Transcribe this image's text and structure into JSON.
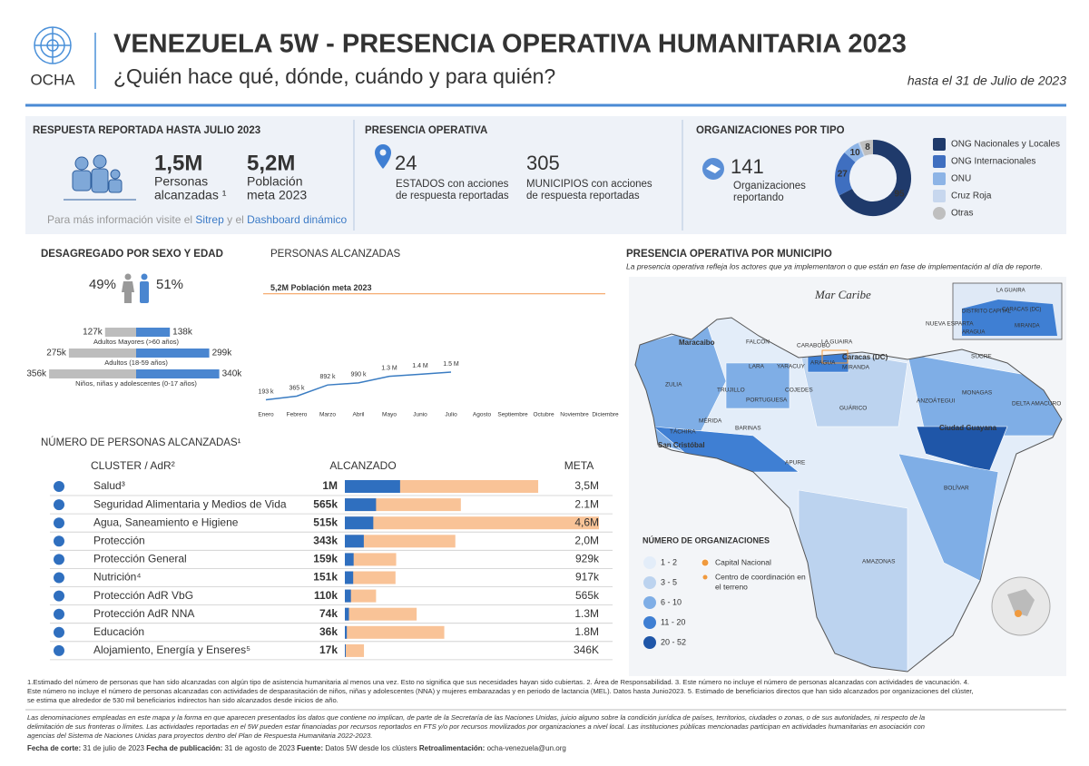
{
  "header": {
    "logo_text": "OCHA",
    "title": "VENEZUELA 5W - PRESENCIA OPERATIVA HUMANITARIA 2023",
    "subtitle": "¿Quién hace qué, dónde, cuándo y para quién?",
    "date": "hasta el 31 de Julio de 2023"
  },
  "response": {
    "title": "RESPUESTA REPORTADA HASTA JULIO 2023",
    "reached": "1,5M",
    "reached_label": [
      "Personas",
      "alcanzadas ¹"
    ],
    "target": "5,2M",
    "target_label": [
      "Población",
      "meta 2023"
    ],
    "info": "Para más información  visite el",
    "link1": "Sitrep",
    "joiner": "y el",
    "link2": "Dashboard dinámico"
  },
  "presence": {
    "title": "PRESENCIA OPERATIVA",
    "states": "24",
    "states_label": [
      "ESTADOS con acciones",
      "de respuesta reportadas"
    ],
    "municipalities": "305",
    "municipalities_label": [
      "MUNICIPIOS con acciones",
      "de respuesta reportadas"
    ]
  },
  "organizations": {
    "title": "ORGANIZACIONES POR TIPO",
    "total": "141",
    "total_label": [
      "Organizaciones",
      "reportando"
    ]
  },
  "chart_data": [
    {
      "type": "pie",
      "donut": true,
      "categories": [
        "ONG Nacionales y Locales",
        "ONG Internacionales",
        "ONU",
        "Cruz Roja",
        "Otras"
      ],
      "values": [
        95,
        27,
        10,
        1,
        8
      ],
      "colors": [
        "#1f3a6b",
        "#3f6fc0",
        "#8db4e6",
        "#c7d7ee",
        "#bfbfbf"
      ]
    },
    {
      "type": "pyramid",
      "title": "DESAGREGADO POR SEXO Y EDAD",
      "groups": [
        "Adultos Mayores (>60 años)",
        "Adultos (18-59 años)",
        "Niños, niñas y adolescentes  (0-17 años)"
      ],
      "series": [
        {
          "share": 49,
          "share_label": "49%",
          "color": "#bdbdbd",
          "values": [
            127000,
            275000,
            356000
          ],
          "value_labels": [
            "127k",
            "275k",
            "356k"
          ]
        },
        {
          "share": 51,
          "share_label": "51%",
          "color": "#4a86d0",
          "values": [
            138000,
            299000,
            340000
          ],
          "value_labels": [
            "138k",
            "299k",
            "340k"
          ]
        }
      ],
      "xlim": [
        0,
        360000
      ]
    },
    {
      "type": "line",
      "title": "PERSONAS ALCANZADAS",
      "categories": [
        "Enero",
        "Febrero",
        "Marzo",
        "Abril",
        "Mayo",
        "Junio",
        "Julio",
        "Agosto",
        "Septiembre",
        "Octubre",
        "Noviembre",
        "Diciembre"
      ],
      "values": [
        193000,
        365000,
        892000,
        990000,
        1300000,
        1400000,
        1500000,
        null,
        null,
        null,
        null,
        null
      ],
      "value_labels": [
        "193 k",
        "365 k",
        "892 k",
        "990 k",
        "1.3 M",
        "1.4 M",
        "1.5 M",
        null,
        null,
        null,
        null,
        null
      ],
      "color": "#3a7cc2",
      "ylim": [
        0,
        6000000
      ],
      "target": {
        "value": 5200000,
        "label": "5,2M Población meta 2023"
      },
      "target_color": "#f4a261"
    },
    {
      "type": "bar",
      "orientation": "horizontal",
      "title": "NÚMERO DE PERSONAS ALCANZADAS¹",
      "category_header": "CLUSTER / AdR²",
      "categories": [
        "Salud³",
        "Seguridad Alimentaria y Medios de Vida",
        "Agua, Saneamiento e Higiene",
        "Protección",
        "Protección General",
        "Nutrición⁴",
        "Protección AdR VbG",
        "Protección AdR NNA",
        "Educación",
        "Alojamiento, Energía y Enseres⁵"
      ],
      "series": [
        {
          "name": "ALCANZADO",
          "color": "#2f6fbf",
          "values": [
            1000000,
            565000,
            515000,
            343000,
            159000,
            151000,
            110000,
            74000,
            36000,
            17000
          ],
          "value_labels": [
            "1M",
            "565k",
            "515k",
            "343k",
            "159k",
            "151k",
            "110k",
            "74k",
            "36k",
            "17k"
          ]
        },
        {
          "name": "META",
          "color": "#f9c397",
          "values": [
            3500000,
            2100000,
            4600000,
            2000000,
            929000,
            917000,
            565000,
            1300000,
            1800000,
            346000
          ],
          "value_labels": [
            "3,5M",
            "2.1M",
            "4,6M",
            "2,0M",
            "929k",
            "917k",
            "565k",
            "1.3M",
            "1.8M",
            "346K"
          ]
        }
      ],
      "xlim": [
        0,
        4600000
      ]
    }
  ],
  "map": {
    "title": "PRESENCIA OPERATIVA POR MUNICIPIO",
    "subtitle": "La presencia operativa refleja los actores que ya implementaron o que están en fase de implementación al día de reporte.",
    "sea": "Mar Caribe",
    "labels": [
      "Maracaibo",
      "FALCÓN",
      "CARABOBO",
      "LA GUAIRA",
      "Caracas (DC)",
      "MIRANDA",
      "ARAGUA",
      "LARA",
      "YARACUY",
      "ZULIA",
      "TRUJILLO",
      "PORTUGUESA",
      "COJEDES",
      "GUÁRICO",
      "MÉRIDA",
      "BARINAS",
      "TÁCHIRA",
      "San Cristóbal",
      "APURE",
      "ANZOÁTEGUI",
      "SUCRE",
      "MONAGAS",
      "DELTA AMACURO",
      "Ciudad Guayana",
      "BOLÍVAR",
      "AMAZONAS",
      "NUEVA ESPARTA"
    ],
    "inset_labels": [
      "LA GUAIRA",
      "DISTRITO CAPITAL",
      "CARACAS (DC)",
      "MIRANDA",
      "ARAGUA"
    ],
    "legend_title": "NÚMERO DE ORGANIZACIONES",
    "legend": [
      "1 - 2",
      "3 - 5",
      "6 - 10",
      "11 - 20",
      "20 - 52"
    ],
    "legend_colors": [
      "#e3edf9",
      "#bcd3ef",
      "#7faee6",
      "#3f7fd3",
      "#1f56a8"
    ],
    "capital": "Capital Nacional",
    "center": [
      "Centro de coordinación en",
      "el terreno"
    ]
  },
  "footnotes": [
    "1.Estimado del número de personas que han sido alcanzadas con algún tipo de asistencia humanitaria al menos una vez. Esto no significa que sus necesidades hayan sido cubiertas.  2. Área de Responsabilidad. 3. Este número no incluye el número de personas alcanzadas con actividades de vacunación. 4.",
    "Este número no incluye el número de personas alcanzadas con actividades de desparasitación de niños, niñas y adolescentes (NNA) y mujeres embarazadas y en periodo de lactancia (MEL). Datos hasta Junio2023.  5.  Estimado de beneficiarios directos que han sido alcanzados por organizaciones del clúster,",
    "se estima que alrededor de 530 mil beneficiarios indirectos han sido alcanzados desde inicios de año."
  ],
  "disclaimer": [
    "Las denominaciones empleadas en este mapa y la forma en que aparecen presentados los datos que contiene no implican, de parte de la Secretaría de las Naciones Unidas, juicio alguno sobre la condición jurídica de países, territorios, ciudades o zonas, o de sus autoridades, ni respecto de la",
    "delimitación de sus fronteras o límites. Las actividades reportadas en el 5W pueden estar financiadas por recursos reportados en FTS y/o por recursos movilizados por organizaciones a nivel local. Las instituciones públicas mencionadas participan en actividades humanitarias en asociación con",
    "agencias del Sistema de Naciones Unidas para proyectos dentro del Plan de Respuesta Humanitaria 2022-2023."
  ],
  "footer": [
    {
      "label": "Fecha de corte:",
      "text": "31 de julio de 2023"
    },
    {
      "label": "Fecha de publicación:",
      "text": "31 de agosto de 2023"
    },
    {
      "label": "Fuente:",
      "text": "Datos 5W desde los clústers"
    },
    {
      "label": "Retroalimentación:",
      "text": "ocha-venezuela@un.org"
    }
  ]
}
